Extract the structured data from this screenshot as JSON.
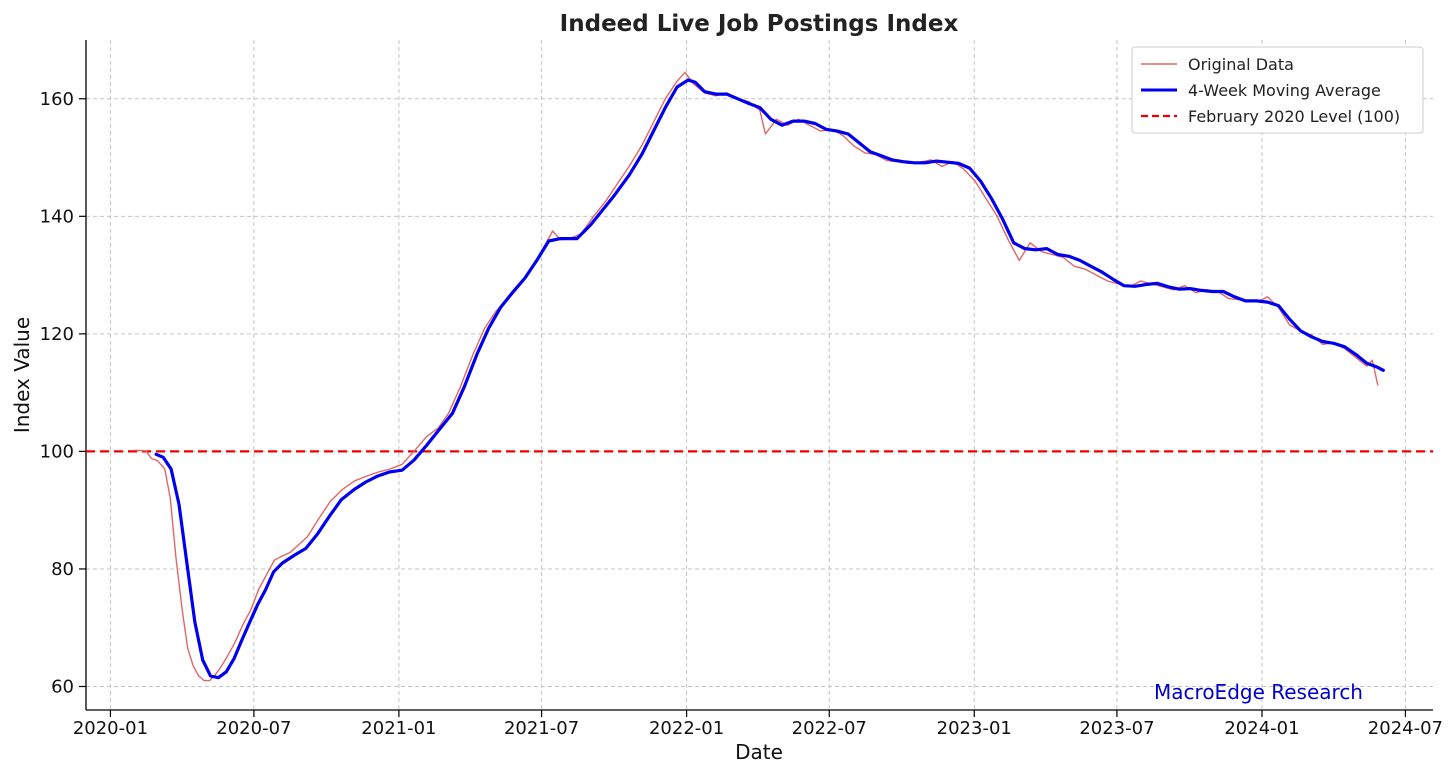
{
  "chart_data": {
    "type": "line",
    "title": "Indeed Live Job Postings Index",
    "xlabel": "Date",
    "ylabel": "Index Value",
    "x_ticks": [
      "2020-01",
      "2020-07",
      "2021-01",
      "2021-07",
      "2022-01",
      "2022-07",
      "2023-01",
      "2023-07",
      "2024-01",
      "2024-07"
    ],
    "y_ticks": [
      60,
      80,
      100,
      120,
      140,
      160
    ],
    "xlim": [
      "2019-12-01",
      "2024-08-05"
    ],
    "ylim": [
      56,
      170
    ],
    "grid": true,
    "legend_position": "top-right",
    "series": [
      {
        "name": "Original Data",
        "color": "#e06666",
        "points": [
          [
            "2020-02-01",
            100.2
          ],
          [
            "2020-02-15",
            100.1
          ],
          [
            "2020-02-22",
            98.8
          ],
          [
            "2020-03-01",
            98.4
          ],
          [
            "2020-03-10",
            97.0
          ],
          [
            "2020-03-17",
            92.0
          ],
          [
            "2020-03-24",
            82.0
          ],
          [
            "2020-04-01",
            73.0
          ],
          [
            "2020-04-08",
            66.5
          ],
          [
            "2020-04-15",
            63.5
          ],
          [
            "2020-04-22",
            61.8
          ],
          [
            "2020-04-29",
            61.0
          ],
          [
            "2020-05-06",
            61.0
          ],
          [
            "2020-05-13",
            62.0
          ],
          [
            "2020-05-20",
            63.3
          ],
          [
            "2020-05-27",
            64.8
          ],
          [
            "2020-06-07",
            67.5
          ],
          [
            "2020-06-17",
            70.5
          ],
          [
            "2020-06-27",
            73.0
          ],
          [
            "2020-07-07",
            76.5
          ],
          [
            "2020-07-17",
            79.0
          ],
          [
            "2020-07-27",
            81.5
          ],
          [
            "2020-08-06",
            82.2
          ],
          [
            "2020-08-16",
            82.8
          ],
          [
            "2020-08-26",
            84.0
          ],
          [
            "2020-09-07",
            85.5
          ],
          [
            "2020-09-21",
            88.5
          ],
          [
            "2020-10-06",
            91.5
          ],
          [
            "2020-10-21",
            93.5
          ],
          [
            "2020-11-06",
            95.0
          ],
          [
            "2020-11-21",
            95.8
          ],
          [
            "2020-12-06",
            96.5
          ],
          [
            "2020-12-21",
            97.0
          ],
          [
            "2021-01-05",
            97.8
          ],
          [
            "2021-01-20",
            100.0
          ],
          [
            "2021-02-05",
            102.5
          ],
          [
            "2021-02-20",
            104.0
          ],
          [
            "2021-03-05",
            106.5
          ],
          [
            "2021-03-20",
            111.0
          ],
          [
            "2021-04-05",
            116.5
          ],
          [
            "2021-04-20",
            121.0
          ],
          [
            "2021-05-05",
            124.0
          ],
          [
            "2021-05-20",
            126.0
          ],
          [
            "2021-06-05",
            128.5
          ],
          [
            "2021-06-20",
            131.5
          ],
          [
            "2021-07-05",
            135.0
          ],
          [
            "2021-07-15",
            137.5
          ],
          [
            "2021-07-25",
            136.0
          ],
          [
            "2021-08-05",
            136.2
          ],
          [
            "2021-08-20",
            137.0
          ],
          [
            "2021-09-05",
            140.0
          ],
          [
            "2021-09-20",
            142.5
          ],
          [
            "2021-10-05",
            145.5
          ],
          [
            "2021-10-20",
            148.5
          ],
          [
            "2021-11-05",
            152.0
          ],
          [
            "2021-11-20",
            156.0
          ],
          [
            "2021-12-05",
            160.0
          ],
          [
            "2021-12-20",
            163.0
          ],
          [
            "2021-12-30",
            164.5
          ],
          [
            "2022-01-10",
            162.5
          ],
          [
            "2022-01-24",
            161.0
          ],
          [
            "2022-02-07",
            160.5
          ],
          [
            "2022-02-21",
            161.0
          ],
          [
            "2022-03-07",
            160.0
          ],
          [
            "2022-03-21",
            159.5
          ],
          [
            "2022-04-04",
            158.0
          ],
          [
            "2022-04-11",
            154.0
          ],
          [
            "2022-04-25",
            156.5
          ],
          [
            "2022-05-09",
            155.5
          ],
          [
            "2022-05-23",
            156.5
          ],
          [
            "2022-06-06",
            155.5
          ],
          [
            "2022-06-20",
            154.5
          ],
          [
            "2022-07-04",
            154.8
          ],
          [
            "2022-07-18",
            153.8
          ],
          [
            "2022-08-01",
            152.0
          ],
          [
            "2022-08-15",
            150.8
          ],
          [
            "2022-08-29",
            150.5
          ],
          [
            "2022-09-12",
            149.5
          ],
          [
            "2022-09-26",
            149.3
          ],
          [
            "2022-10-10",
            149.0
          ],
          [
            "2022-10-24",
            149.2
          ],
          [
            "2022-11-07",
            149.6
          ],
          [
            "2022-11-21",
            148.5
          ],
          [
            "2022-12-05",
            149.3
          ],
          [
            "2022-12-19",
            148.0
          ],
          [
            "2023-01-02",
            146.0
          ],
          [
            "2023-01-16",
            143.0
          ],
          [
            "2023-01-30",
            140.0
          ],
          [
            "2023-02-13",
            136.0
          ],
          [
            "2023-02-27",
            132.5
          ],
          [
            "2023-03-13",
            135.5
          ],
          [
            "2023-03-27",
            134.0
          ],
          [
            "2023-04-10",
            133.5
          ],
          [
            "2023-04-24",
            133.0
          ],
          [
            "2023-05-08",
            131.5
          ],
          [
            "2023-05-22",
            131.0
          ],
          [
            "2023-06-05",
            130.0
          ],
          [
            "2023-06-19",
            129.0
          ],
          [
            "2023-07-03",
            128.5
          ],
          [
            "2023-07-17",
            128.0
          ],
          [
            "2023-07-31",
            129.0
          ],
          [
            "2023-08-14",
            128.5
          ],
          [
            "2023-08-28",
            128.0
          ],
          [
            "2023-09-11",
            127.5
          ],
          [
            "2023-09-25",
            128.2
          ],
          [
            "2023-10-09",
            127.0
          ],
          [
            "2023-10-23",
            127.5
          ],
          [
            "2023-11-06",
            127.2
          ],
          [
            "2023-11-20",
            126.0
          ],
          [
            "2023-12-04",
            125.8
          ],
          [
            "2023-12-18",
            125.5
          ],
          [
            "2024-01-01",
            125.8
          ],
          [
            "2024-01-08",
            126.3
          ],
          [
            "2024-01-22",
            124.5
          ],
          [
            "2024-02-05",
            121.5
          ],
          [
            "2024-02-19",
            120.5
          ],
          [
            "2024-03-04",
            119.8
          ],
          [
            "2024-03-18",
            118.2
          ],
          [
            "2024-04-01",
            118.5
          ],
          [
            "2024-04-15",
            117.5
          ],
          [
            "2024-04-29",
            116.0
          ],
          [
            "2024-05-13",
            114.5
          ],
          [
            "2024-05-20",
            115.5
          ],
          [
            "2024-05-27",
            111.3
          ]
        ]
      },
      {
        "name": "4-Week Moving Average",
        "color": "#0000ee",
        "points": [
          [
            "2020-02-28",
            99.5
          ],
          [
            "2020-03-08",
            99.0
          ],
          [
            "2020-03-18",
            97.0
          ],
          [
            "2020-03-28",
            91.0
          ],
          [
            "2020-04-07",
            81.0
          ],
          [
            "2020-04-17",
            71.0
          ],
          [
            "2020-04-27",
            64.5
          ],
          [
            "2020-05-07",
            61.8
          ],
          [
            "2020-05-17",
            61.5
          ],
          [
            "2020-05-27",
            62.5
          ],
          [
            "2020-06-06",
            64.8
          ],
          [
            "2020-06-16",
            68.0
          ],
          [
            "2020-06-26",
            71.0
          ],
          [
            "2020-07-06",
            74.0
          ],
          [
            "2020-07-16",
            76.5
          ],
          [
            "2020-07-26",
            79.5
          ],
          [
            "2020-08-06",
            81.0
          ],
          [
            "2020-08-21",
            82.3
          ],
          [
            "2020-09-05",
            83.5
          ],
          [
            "2020-09-20",
            86.0
          ],
          [
            "2020-10-05",
            89.0
          ],
          [
            "2020-10-20",
            91.8
          ],
          [
            "2020-11-05",
            93.5
          ],
          [
            "2020-11-20",
            94.8
          ],
          [
            "2020-12-05",
            95.8
          ],
          [
            "2020-12-20",
            96.5
          ],
          [
            "2021-01-05",
            96.8
          ],
          [
            "2021-01-20",
            98.5
          ],
          [
            "2021-02-05",
            101.0
          ],
          [
            "2021-02-20",
            103.5
          ],
          [
            "2021-03-10",
            106.5
          ],
          [
            "2021-03-25",
            111.0
          ],
          [
            "2021-04-10",
            116.5
          ],
          [
            "2021-04-25",
            121.0
          ],
          [
            "2021-05-10",
            124.5
          ],
          [
            "2021-05-25",
            127.0
          ],
          [
            "2021-06-10",
            129.5
          ],
          [
            "2021-06-25",
            132.5
          ],
          [
            "2021-07-10",
            135.8
          ],
          [
            "2021-07-25",
            136.2
          ],
          [
            "2021-08-15",
            136.2
          ],
          [
            "2021-09-01",
            138.5
          ],
          [
            "2021-09-16",
            141.0
          ],
          [
            "2021-10-01",
            143.5
          ],
          [
            "2021-10-20",
            147.0
          ],
          [
            "2021-11-05",
            150.5
          ],
          [
            "2021-11-20",
            154.5
          ],
          [
            "2021-12-05",
            158.5
          ],
          [
            "2021-12-20",
            162.0
          ],
          [
            "2022-01-03",
            163.2
          ],
          [
            "2022-01-12",
            162.8
          ],
          [
            "2022-01-24",
            161.2
          ],
          [
            "2022-02-07",
            160.8
          ],
          [
            "2022-02-21",
            160.8
          ],
          [
            "2022-03-07",
            160.0
          ],
          [
            "2022-03-21",
            159.2
          ],
          [
            "2022-04-04",
            158.5
          ],
          [
            "2022-04-18",
            156.5
          ],
          [
            "2022-05-02",
            155.5
          ],
          [
            "2022-05-16",
            156.2
          ],
          [
            "2022-05-30",
            156.2
          ],
          [
            "2022-06-13",
            155.8
          ],
          [
            "2022-06-27",
            154.8
          ],
          [
            "2022-07-11",
            154.5
          ],
          [
            "2022-07-25",
            154.0
          ],
          [
            "2022-08-08",
            152.5
          ],
          [
            "2022-08-22",
            151.0
          ],
          [
            "2022-09-05",
            150.3
          ],
          [
            "2022-09-19",
            149.6
          ],
          [
            "2022-10-03",
            149.3
          ],
          [
            "2022-10-17",
            149.1
          ],
          [
            "2022-10-31",
            149.1
          ],
          [
            "2022-11-14",
            149.4
          ],
          [
            "2022-11-28",
            149.2
          ],
          [
            "2022-12-12",
            149.0
          ],
          [
            "2022-12-26",
            148.2
          ],
          [
            "2023-01-09",
            146.0
          ],
          [
            "2023-01-23",
            143.0
          ],
          [
            "2023-02-06",
            139.5
          ],
          [
            "2023-02-20",
            135.5
          ],
          [
            "2023-03-06",
            134.5
          ],
          [
            "2023-03-20",
            134.3
          ],
          [
            "2023-04-03",
            134.5
          ],
          [
            "2023-04-17",
            133.5
          ],
          [
            "2023-05-01",
            133.2
          ],
          [
            "2023-05-15",
            132.5
          ],
          [
            "2023-05-29",
            131.5
          ],
          [
            "2023-06-12",
            130.5
          ],
          [
            "2023-06-26",
            129.3
          ],
          [
            "2023-07-10",
            128.2
          ],
          [
            "2023-07-24",
            128.1
          ],
          [
            "2023-08-07",
            128.4
          ],
          [
            "2023-08-21",
            128.6
          ],
          [
            "2023-09-04",
            128.0
          ],
          [
            "2023-09-18",
            127.6
          ],
          [
            "2023-10-02",
            127.7
          ],
          [
            "2023-10-16",
            127.4
          ],
          [
            "2023-10-30",
            127.2
          ],
          [
            "2023-11-13",
            127.2
          ],
          [
            "2023-11-27",
            126.3
          ],
          [
            "2023-12-11",
            125.6
          ],
          [
            "2023-12-25",
            125.6
          ],
          [
            "2024-01-08",
            125.4
          ],
          [
            "2024-01-22",
            124.8
          ],
          [
            "2024-02-05",
            122.5
          ],
          [
            "2024-02-19",
            120.5
          ],
          [
            "2024-03-04",
            119.5
          ],
          [
            "2024-03-18",
            118.7
          ],
          [
            "2024-04-01",
            118.4
          ],
          [
            "2024-04-15",
            117.8
          ],
          [
            "2024-04-29",
            116.5
          ],
          [
            "2024-05-13",
            115.0
          ],
          [
            "2024-05-27",
            114.3
          ],
          [
            "2024-06-03",
            113.8
          ]
        ]
      }
    ],
    "reference_line": {
      "label": "February 2020 Level (100)",
      "y": 100,
      "color": "#ee0000",
      "style": "dashed"
    },
    "watermark": {
      "text": "MacroEdge Research",
      "color": "#0000cc"
    }
  }
}
